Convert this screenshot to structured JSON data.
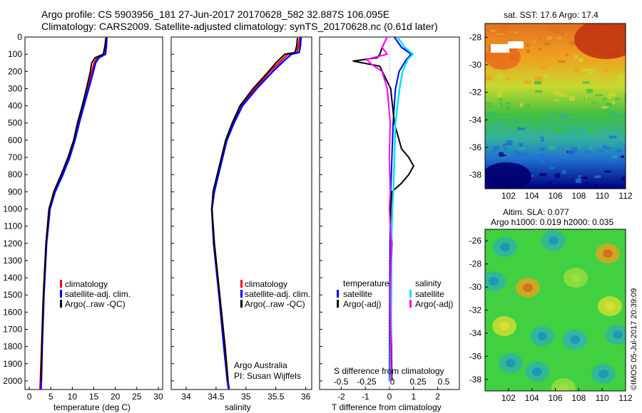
{
  "header": {
    "line1": "Argo profile: CS 5903956_181 27-Jun-2017 20170628_582 32.887S 106.095E",
    "line2": "Climatology: CARS2009. Satellite-adjusted climatology: synTS_20170628.nc (0.61d later)"
  },
  "colors": {
    "climatology": "#ff0000",
    "satellite": "#0000ff",
    "argo": "#000000",
    "sal_satellite": "#00e5ee",
    "sal_argo": "#ff00ff"
  },
  "chart_data": [
    {
      "type": "line",
      "panel": "temperature",
      "xlabel": "temperature (deg C)",
      "xlim": [
        -1,
        31
      ],
      "xticks": [
        "0",
        "5",
        "10",
        "15",
        "20",
        "25",
        "30"
      ],
      "ylim": [
        0,
        2050
      ],
      "yticks": [
        "0",
        "100",
        "200",
        "300",
        "400",
        "500",
        "600",
        "700",
        "800",
        "900",
        "1000",
        "1100",
        "1200",
        "1300",
        "1400",
        "1500",
        "1600",
        "1700",
        "1800",
        "1900",
        "2000"
      ],
      "legend": [
        "climatology",
        "satellite-adj. clim.",
        "Argo(..raw -QC)"
      ],
      "series": [
        {
          "name": "climatology",
          "depth": [
            0,
            50,
            100,
            120,
            150,
            200,
            300,
            400,
            500,
            600,
            700,
            800,
            900,
            1000,
            1200,
            1500,
            1800,
            2000,
            2050
          ],
          "values": [
            18.0,
            17.9,
            17.6,
            15.8,
            15.1,
            14.6,
            13.5,
            12.4,
            11.3,
            10.4,
            9.2,
            7.6,
            5.8,
            4.6,
            3.9,
            3.3,
            2.9,
            2.6,
            2.5
          ]
        },
        {
          "name": "satellite-adj. clim.",
          "depth": [
            0,
            50,
            100,
            120,
            150,
            200,
            300,
            400,
            500,
            600,
            700,
            800,
            900,
            1000,
            1200,
            1500,
            1800,
            2000,
            2050
          ],
          "values": [
            18.0,
            17.9,
            17.7,
            16.2,
            15.4,
            14.9,
            13.8,
            12.7,
            11.6,
            10.6,
            9.4,
            7.8,
            6.0,
            4.8,
            4.0,
            3.4,
            3.0,
            2.8,
            2.7
          ]
        },
        {
          "name": "Argo(..raw -QC)",
          "depth": [
            5,
            50,
            100,
            120,
            150,
            200,
            300,
            400,
            500,
            600,
            700,
            800,
            900,
            1000,
            1200,
            1500,
            1800,
            2000
          ],
          "values": [
            17.8,
            17.6,
            17.2,
            15.3,
            14.5,
            14.2,
            13.3,
            12.3,
            11.2,
            10.3,
            9.0,
            7.4,
            5.7,
            4.6,
            3.9,
            3.3,
            2.9,
            2.7
          ]
        }
      ]
    },
    {
      "type": "line",
      "panel": "salinity",
      "xlabel": "salinity",
      "xlim": [
        33.75,
        36.1
      ],
      "xticks": [
        "34",
        "34.5",
        "35",
        "35.5",
        "36"
      ],
      "ylim": [
        0,
        2050
      ],
      "legend": [
        "climatology",
        "satellite-adj. clim.",
        "Argo(..raw -QC)"
      ],
      "annotation": [
        "Argo Australia",
        "PI: Susan Wijffels"
      ],
      "series": [
        {
          "name": "climatology",
          "depth": [
            0,
            50,
            90,
            100,
            150,
            200,
            300,
            400,
            500,
            600,
            700,
            800,
            900,
            1000,
            1200,
            1500,
            1800,
            2000,
            2050
          ],
          "values": [
            35.9,
            35.88,
            35.85,
            35.7,
            35.55,
            35.4,
            35.15,
            34.92,
            34.78,
            34.67,
            34.6,
            34.53,
            34.46,
            34.43,
            34.47,
            34.56,
            34.65,
            34.7,
            34.72
          ]
        },
        {
          "name": "satellite-adj. clim.",
          "depth": [
            0,
            50,
            90,
            100,
            150,
            200,
            300,
            400,
            500,
            600,
            700,
            800,
            900,
            1000,
            1200,
            1500,
            1800,
            2000,
            2050
          ],
          "values": [
            35.92,
            35.91,
            35.89,
            35.76,
            35.6,
            35.45,
            35.18,
            34.94,
            34.8,
            34.68,
            34.61,
            34.54,
            34.47,
            34.43,
            34.46,
            34.55,
            34.63,
            34.69,
            34.71
          ]
        },
        {
          "name": "Argo(..raw -QC)",
          "depth": [
            5,
            50,
            90,
            100,
            150,
            200,
            300,
            400,
            500,
            600,
            700,
            800,
            900,
            1000,
            1200,
            1500,
            1800,
            2000
          ],
          "values": [
            35.86,
            35.85,
            35.82,
            35.65,
            35.5,
            35.38,
            35.12,
            34.9,
            34.77,
            34.66,
            34.59,
            34.52,
            34.45,
            34.43,
            34.47,
            34.56,
            34.65,
            34.7
          ]
        }
      ]
    },
    {
      "type": "line",
      "panel": "difference",
      "xlabel": "T difference from climatology",
      "xlim": [
        -2.9,
        2.9
      ],
      "xticks": [
        "-2",
        "-1",
        "0",
        "1",
        "2"
      ],
      "top_axis_label": "S difference from climatology",
      "top_ticks": [
        "-0.5",
        "-0.25",
        "0",
        "0.25",
        "0.5"
      ],
      "top_tick_values": [
        -0.5,
        -0.25,
        0,
        0.25,
        0.5
      ],
      "legend_titles": [
        "temperature",
        "salinity"
      ],
      "legend": [
        "satellite",
        "Argo(-adj)",
        "satellite",
        "Argo(-adj)"
      ],
      "series": [
        {
          "name": "T satellite",
          "depth": [
            0,
            60,
            100,
            130,
            200,
            300,
            500,
            700,
            900,
            1000,
            1200,
            1500,
            2000
          ],
          "values": [
            0.2,
            0.5,
            0.9,
            0.7,
            0.4,
            0.25,
            0.15,
            0.1,
            0.05,
            0.05,
            0.02,
            0.01,
            0.0
          ]
        },
        {
          "name": "T Argo(-adj)",
          "depth": [
            0,
            60,
            100,
            120,
            140,
            170,
            200,
            300,
            500,
            650,
            700,
            750,
            800,
            850,
            900,
            1000,
            1200,
            1500,
            2000
          ],
          "values": [
            -0.1,
            -0.3,
            -0.4,
            -0.5,
            -1.5,
            -0.4,
            -0.3,
            0.05,
            0.2,
            0.5,
            0.8,
            1.0,
            0.8,
            0.5,
            0.1,
            0.05,
            0.1,
            0.05,
            0.1
          ]
        },
        {
          "name": "S satellite",
          "depth": [
            0,
            60,
            100,
            130,
            200,
            300,
            500,
            700,
            900,
            1000,
            1200,
            1500,
            2000
          ],
          "values": [
            0.05,
            0.12,
            0.2,
            0.15,
            0.1,
            0.07,
            0.03,
            0.02,
            0.01,
            0.0,
            -0.01,
            -0.01,
            -0.02
          ]
        },
        {
          "name": "S Argo(-adj)",
          "depth": [
            0,
            60,
            100,
            130,
            160,
            200,
            300,
            500,
            700,
            900,
            1000,
            1200,
            1500,
            2000
          ],
          "values": [
            -0.05,
            -0.1,
            -0.05,
            -0.25,
            -0.2,
            -0.1,
            -0.05,
            -0.02,
            -0.03,
            -0.02,
            -0.03,
            -0.01,
            -0.02,
            -0.01
          ]
        }
      ]
    },
    {
      "type": "heatmap",
      "panel": "sst",
      "title": "sat. SST: 17.6 Argo: 17.4",
      "xticks": [
        "102",
        "104",
        "106",
        "108",
        "110",
        "112"
      ],
      "yticks": [
        "-28",
        "-30",
        "-32",
        "-34",
        "-36",
        "-38"
      ],
      "xlim": [
        100,
        112
      ],
      "ylim": [
        -39,
        -27
      ]
    },
    {
      "type": "heatmap",
      "panel": "sla",
      "title_line1": "Altim. SLA: 0.077",
      "title_line2": "Argo h1000: 0.019 h2000: 0.035",
      "xticks": [
        "102",
        "104",
        "106",
        "108",
        "110",
        "112"
      ],
      "yticks": [
        "-26",
        "-28",
        "-30",
        "-32",
        "-34",
        "-36",
        "-38"
      ],
      "xlim": [
        100,
        112
      ],
      "ylim": [
        -39,
        -25
      ]
    }
  ],
  "footer": {
    "stamp": "©IMOS 05-Jul-2017 20:39:09"
  }
}
